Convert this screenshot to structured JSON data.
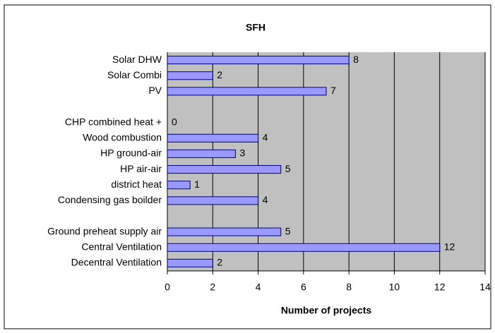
{
  "chart_data": {
    "type": "bar",
    "orientation": "horizontal",
    "title": "SFH",
    "x_label": "Number of projects",
    "categories": [
      "Solar DHW",
      "Solar Combi",
      "PV",
      null,
      "CHP combined heat +",
      "Wood combustion",
      "HP ground-air",
      "HP air-air",
      "district heat",
      "Condensing gas boilder",
      null,
      "Ground preheat supply air",
      "Central Ventilation",
      "Decentral Ventilation"
    ],
    "values": [
      8,
      2,
      7,
      null,
      0,
      4,
      3,
      5,
      1,
      4,
      null,
      5,
      12,
      2
    ],
    "color": "#9999ff",
    "xlim": [
      0,
      14
    ],
    "xticks": [
      0,
      2,
      4,
      6,
      8,
      10,
      12,
      14
    ],
    "grid": true
  }
}
